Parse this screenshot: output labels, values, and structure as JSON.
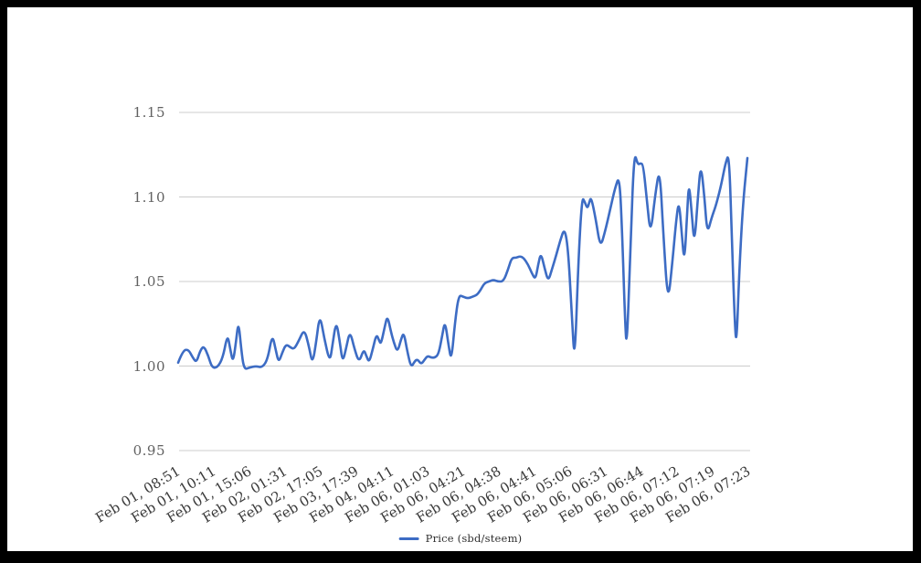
{
  "legend": {
    "label": "Price (sbd/steem)"
  },
  "colors": {
    "line": "#3d6cc4",
    "gridline": "#cccccc",
    "y_axis_text": "#616161",
    "x_axis_text": "#3a3a3a",
    "legend_text": "#2f2f2f",
    "frame": "#000000",
    "background": "#ffffff"
  },
  "chart_data": {
    "type": "line",
    "title": "",
    "xlabel": "",
    "ylabel": "",
    "legend_position": "bottom-center",
    "grid": true,
    "series_name": "Price (sbd/steem)",
    "y_ticks": [
      {
        "label": "1.15",
        "value": 1.15
      },
      {
        "label": "1.10",
        "value": 1.1
      },
      {
        "label": "1.05",
        "value": 1.05
      },
      {
        "label": "1.00",
        "value": 1.0
      },
      {
        "label": "0.95",
        "value": 0.95
      }
    ],
    "ylim": [
      0.95,
      1.15
    ],
    "x_ticks": [
      "Feb 01, 08:51",
      "Feb 01, 10:11",
      "Feb 01, 15:06",
      "Feb 02, 01:31",
      "Feb 02, 17:05",
      "Feb 03, 17:39",
      "Feb 04, 04:11",
      "Feb 06, 01:03",
      "Feb 06, 04:21",
      "Feb 06, 04:38",
      "Feb 06, 04:41",
      "Feb 06, 05:06",
      "Feb 06, 06:31",
      "Feb 06, 06:44",
      "Feb 06, 07:12",
      "Feb 06, 07:19",
      "Feb 06, 07:23"
    ],
    "x_unit": "screen_px_along_time_axis",
    "points": [
      [
        195,
        1.002
      ],
      [
        200,
        1.009
      ],
      [
        206,
        1.01
      ],
      [
        211,
        1.005
      ],
      [
        215,
        1.002
      ],
      [
        219,
        1.009
      ],
      [
        223,
        1.012
      ],
      [
        228,
        1.006
      ],
      [
        232,
        0.999
      ],
      [
        238,
        0.999
      ],
      [
        244,
        1.005
      ],
      [
        249,
        1.019
      ],
      [
        252,
        1.01
      ],
      [
        255,
        1.002
      ],
      [
        258,
        1.013
      ],
      [
        261,
        1.027
      ],
      [
        264,
        1.01
      ],
      [
        267,
        0.998
      ],
      [
        273,
        0.999
      ],
      [
        280,
        1.0
      ],
      [
        287,
        0.999
      ],
      [
        293,
        1.004
      ],
      [
        298,
        1.019
      ],
      [
        302,
        1.009
      ],
      [
        305,
        1.002
      ],
      [
        309,
        1.008
      ],
      [
        313,
        1.013
      ],
      [
        318,
        1.011
      ],
      [
        322,
        1.01
      ],
      [
        327,
        1.015
      ],
      [
        333,
        1.022
      ],
      [
        338,
        1.012
      ],
      [
        342,
        1.001
      ],
      [
        346,
        1.014
      ],
      [
        350,
        1.031
      ],
      [
        355,
        1.016
      ],
      [
        361,
        1.002
      ],
      [
        364,
        1.013
      ],
      [
        368,
        1.027
      ],
      [
        372,
        1.014
      ],
      [
        375,
        1.002
      ],
      [
        379,
        1.011
      ],
      [
        383,
        1.021
      ],
      [
        388,
        1.01
      ],
      [
        393,
        1.002
      ],
      [
        398,
        1.01
      ],
      [
        401,
        1.006
      ],
      [
        404,
        1.002
      ],
      [
        408,
        1.01
      ],
      [
        412,
        1.019
      ],
      [
        415,
        1.015
      ],
      [
        417,
        1.013
      ],
      [
        421,
        1.023
      ],
      [
        424,
        1.03
      ],
      [
        428,
        1.02
      ],
      [
        431,
        1.014
      ],
      [
        435,
        1.008
      ],
      [
        439,
        1.016
      ],
      [
        442,
        1.02
      ],
      [
        446,
        1.008
      ],
      [
        450,
        0.999
      ],
      [
        454,
        1.003
      ],
      [
        457,
        1.004
      ],
      [
        461,
        1.001
      ],
      [
        465,
        1.004
      ],
      [
        468,
        1.006
      ],
      [
        472,
        1.005
      ],
      [
        476,
        1.005
      ],
      [
        480,
        1.007
      ],
      [
        484,
        1.018
      ],
      [
        487,
        1.027
      ],
      [
        491,
        1.012
      ],
      [
        494,
        1.003
      ],
      [
        498,
        1.026
      ],
      [
        502,
        1.042
      ],
      [
        507,
        1.041
      ],
      [
        512,
        1.04
      ],
      [
        517,
        1.041
      ],
      [
        522,
        1.042
      ],
      [
        526,
        1.045
      ],
      [
        530,
        1.049
      ],
      [
        535,
        1.05
      ],
      [
        540,
        1.051
      ],
      [
        545,
        1.05
      ],
      [
        551,
        1.05
      ],
      [
        556,
        1.057
      ],
      [
        560,
        1.064
      ],
      [
        565,
        1.064
      ],
      [
        569,
        1.065
      ],
      [
        573,
        1.064
      ],
      [
        578,
        1.06
      ],
      [
        582,
        1.055
      ],
      [
        586,
        1.051
      ],
      [
        589,
        1.06
      ],
      [
        592,
        1.067
      ],
      [
        596,
        1.058
      ],
      [
        600,
        1.05
      ],
      [
        604,
        1.057
      ],
      [
        609,
        1.066
      ],
      [
        613,
        1.074
      ],
      [
        618,
        1.082
      ],
      [
        622,
        1.068
      ],
      [
        626,
        1.028
      ],
      [
        629,
        1.001
      ],
      [
        633,
        1.062
      ],
      [
        637,
        1.1
      ],
      [
        640,
        1.097
      ],
      [
        643,
        1.093
      ],
      [
        645,
        1.097
      ],
      [
        647,
        1.1
      ],
      [
        652,
        1.087
      ],
      [
        657,
        1.07
      ],
      [
        662,
        1.079
      ],
      [
        668,
        1.093
      ],
      [
        673,
        1.105
      ],
      [
        678,
        1.113
      ],
      [
        681,
        1.078
      ],
      [
        684,
        1.028
      ],
      [
        686,
        1.009
      ],
      [
        690,
        1.07
      ],
      [
        694,
        1.127
      ],
      [
        698,
        1.119
      ],
      [
        701,
        1.12
      ],
      [
        704,
        1.119
      ],
      [
        708,
        1.098
      ],
      [
        712,
        1.077
      ],
      [
        717,
        1.101
      ],
      [
        722,
        1.118
      ],
      [
        726,
        1.078
      ],
      [
        731,
        1.036
      ],
      [
        736,
        1.062
      ],
      [
        740,
        1.086
      ],
      [
        743,
        1.098
      ],
      [
        746,
        1.08
      ],
      [
        749,
        1.06
      ],
      [
        752,
        1.09
      ],
      [
        754,
        1.109
      ],
      [
        757,
        1.091
      ],
      [
        760,
        1.071
      ],
      [
        764,
        1.101
      ],
      [
        767,
        1.12
      ],
      [
        771,
        1.1
      ],
      [
        774,
        1.078
      ],
      [
        779,
        1.088
      ],
      [
        783,
        1.094
      ],
      [
        787,
        1.102
      ],
      [
        790,
        1.109
      ],
      [
        794,
        1.12
      ],
      [
        798,
        1.126
      ],
      [
        801,
        1.075
      ],
      [
        804,
        1.028
      ],
      [
        806,
        1.011
      ],
      [
        809,
        1.055
      ],
      [
        813,
        1.095
      ],
      [
        818,
        1.123
      ]
    ]
  }
}
